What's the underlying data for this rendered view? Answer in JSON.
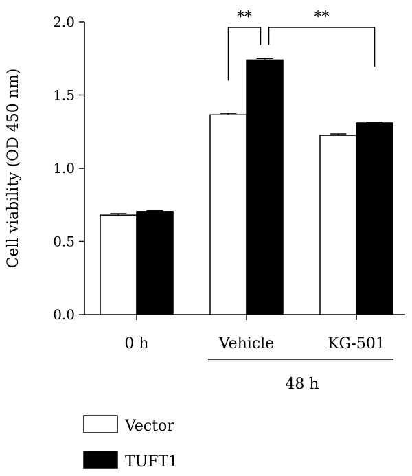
{
  "chart_data": {
    "type": "bar",
    "title": "",
    "xlabel": "",
    "ylabel": "Cell viability (OD 450 nm)",
    "ylim": [
      0,
      2.0
    ],
    "yticks": [
      "0.0",
      "0.5",
      "1.0",
      "1.5",
      "2.0"
    ],
    "ytick_values": [
      0,
      0.5,
      1.0,
      1.5,
      2.0
    ],
    "categories": [
      "0 h",
      "Vehicle",
      "KG-501"
    ],
    "group_label": "48 h",
    "grouped_categories": [
      "Vehicle",
      "KG-501"
    ],
    "series": [
      {
        "name": "Vector",
        "color": "#ffffff",
        "values": [
          0.68,
          1.365,
          1.225
        ],
        "errors": [
          0.01,
          0.01,
          0.01
        ]
      },
      {
        "name": "TUFT1",
        "color": "#000000",
        "values": [
          0.705,
          1.74,
          1.31
        ],
        "errors": [
          0.005,
          0.01,
          0.005
        ]
      }
    ],
    "annotations": [
      {
        "text": "**",
        "between": [
          "Vehicle Vector",
          "Vehicle TUFT1"
        ]
      },
      {
        "text": "**",
        "between": [
          "Vehicle TUFT1",
          "KG-501 TUFT1"
        ]
      }
    ],
    "legend_position": "bottom-left",
    "grid": false
  }
}
